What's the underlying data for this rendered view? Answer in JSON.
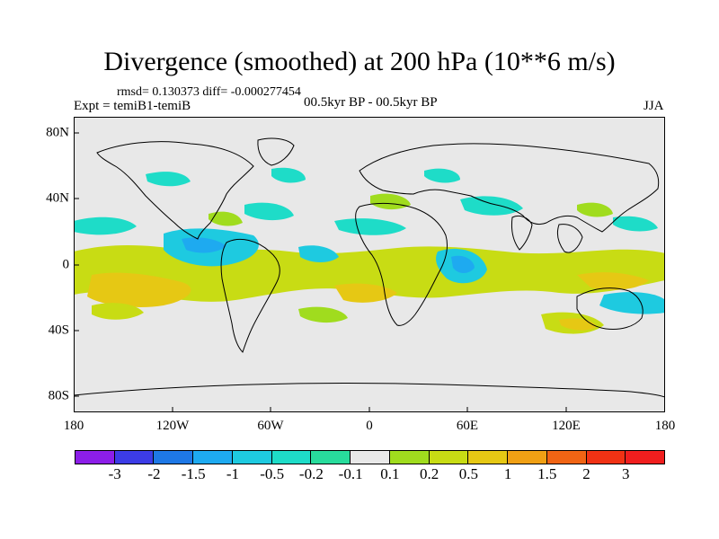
{
  "header": {
    "title": "Divergence (smoothed) at 200 hPa (10**6 m/s)",
    "stats": "rmsd= 0.130373 diff= -0.000277454",
    "experiment": "Expt = temiB1-temiB",
    "period": "00.5kyr BP - 00.5kyr BP",
    "season": "JJA"
  },
  "axes": {
    "x_ticks": [
      "180",
      "120W",
      "60W",
      "0",
      "60E",
      "120E",
      "180"
    ],
    "y_ticks": [
      "80N",
      "40N",
      "0",
      "40S",
      "80S"
    ]
  },
  "colorbar": {
    "labels": [
      "-3",
      "-2",
      "-1.5",
      "-1",
      "-0.5",
      "-0.2",
      "-0.1",
      "0.1",
      "0.2",
      "0.5",
      "1",
      "1.5",
      "2",
      "3"
    ],
    "colors": [
      "#8c1ee8",
      "#3c3ce6",
      "#1e78e6",
      "#1eaaf0",
      "#1ecae0",
      "#1edcc8",
      "#28dc9c",
      "#e8e8e8",
      "#a0dc1e",
      "#c8dc14",
      "#e6c814",
      "#f0a014",
      "#f06414",
      "#f03214",
      "#f01e1e"
    ]
  },
  "colors": {
    "ocean_background": "#e8e8e8",
    "coast": "#000000"
  }
}
